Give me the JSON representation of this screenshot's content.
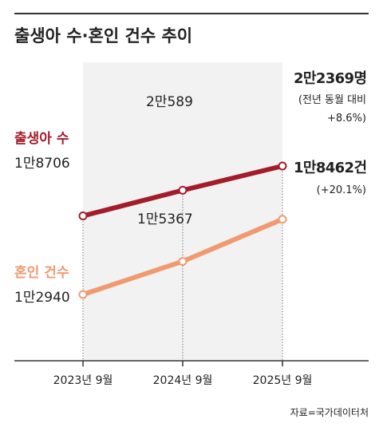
{
  "chart_data": {
    "type": "line",
    "title": "출생아 수·혼인 건수 추이",
    "categories": [
      "2023년 9월",
      "2024년 9월",
      "2025년 9월"
    ],
    "series": [
      {
        "name": "출생아 수",
        "values": [
          18706,
          20589,
          22369
        ],
        "labels": [
          "1만8706",
          "2만589",
          "2만2369명"
        ],
        "color": "#a31c2a",
        "note": [
          "(전년 동월 대비",
          "+8.6%)"
        ]
      },
      {
        "name": "혼인 건수",
        "values": [
          12940,
          15367,
          18462
        ],
        "labels": [
          "1만2940",
          "1만5367",
          "1만8462건"
        ],
        "color": "#ef9a71",
        "note": [
          "(+20.1%)"
        ]
      }
    ],
    "grid": false,
    "source": "자료=국가데이터처"
  },
  "colors": {
    "title_rule": "#333333",
    "background_band": "#f2f2f2",
    "axis": "#333333",
    "text": "#222222"
  }
}
